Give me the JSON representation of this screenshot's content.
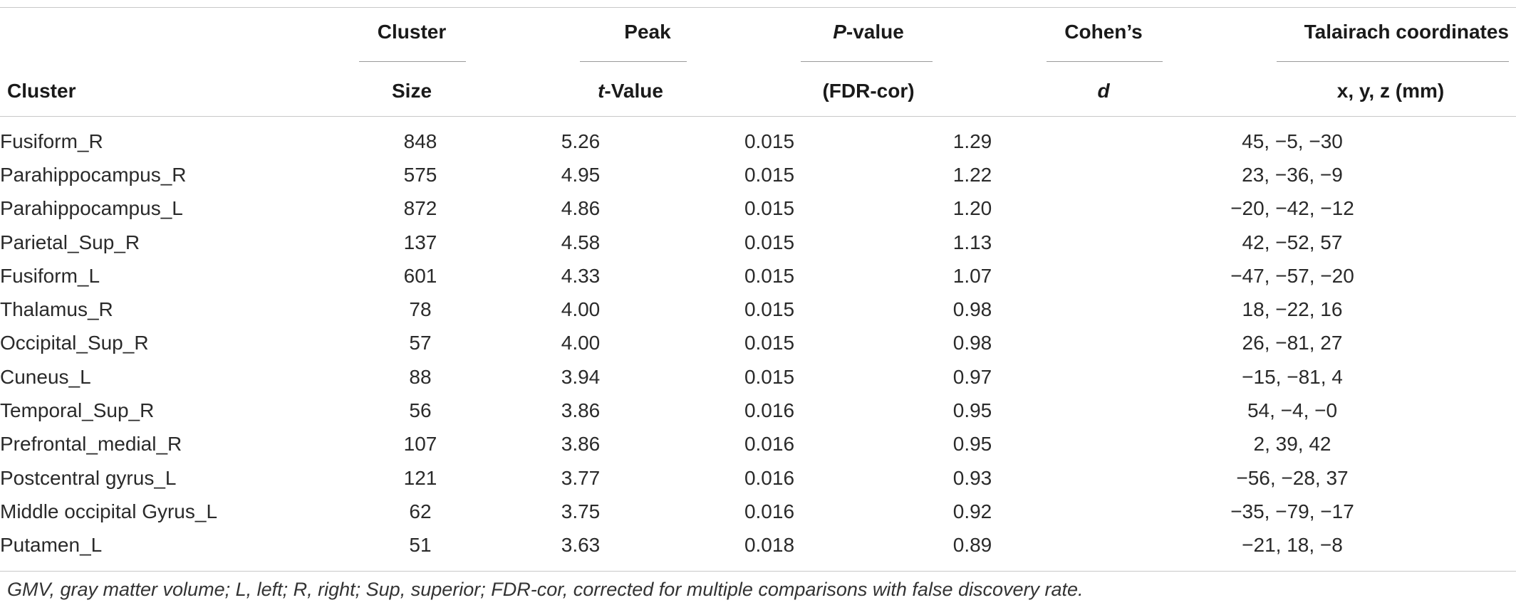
{
  "table": {
    "header": {
      "cluster_label": "Cluster",
      "size_top": "Cluster",
      "size_bottom": "Size",
      "t_top": "Peak",
      "t_bottom_italic": "t",
      "t_bottom_rest": "-Value",
      "p_top_italic": "P",
      "p_top_rest": "-value",
      "p_bottom": "(FDR-cor)",
      "d_top": "Cohen’s",
      "d_bottom": "d",
      "xyz_top": "Talairach coordinates",
      "xyz_bottom": "x, y, z (mm)"
    },
    "rows": [
      {
        "cluster": "Fusiform_R",
        "size": "848",
        "t": "5.26",
        "p": "0.015",
        "d": "1.29",
        "xyz": "45, −5, −30"
      },
      {
        "cluster": "Parahippocampus_R",
        "size": "575",
        "t": "4.95",
        "p": "0.015",
        "d": "1.22",
        "xyz": "23, −36, −9"
      },
      {
        "cluster": "Parahippocampus_L",
        "size": "872",
        "t": "4.86",
        "p": "0.015",
        "d": "1.20",
        "xyz": "−20, −42, −12"
      },
      {
        "cluster": "Parietal_Sup_R",
        "size": "137",
        "t": "4.58",
        "p": "0.015",
        "d": "1.13",
        "xyz": "42, −52, 57"
      },
      {
        "cluster": "Fusiform_L",
        "size": "601",
        "t": "4.33",
        "p": "0.015",
        "d": "1.07",
        "xyz": "−47, −57, −20"
      },
      {
        "cluster": "Thalamus_R",
        "size": "78",
        "t": "4.00",
        "p": "0.015",
        "d": "0.98",
        "xyz": "18, −22, 16"
      },
      {
        "cluster": "Occipital_Sup_R",
        "size": "57",
        "t": "4.00",
        "p": "0.015",
        "d": "0.98",
        "xyz": "26, −81, 27"
      },
      {
        "cluster": "Cuneus_L",
        "size": "88",
        "t": "3.94",
        "p": "0.015",
        "d": "0.97",
        "xyz": "−15, −81, 4"
      },
      {
        "cluster": "Temporal_Sup_R",
        "size": "56",
        "t": "3.86",
        "p": "0.016",
        "d": "0.95",
        "xyz": "54, −4, −0"
      },
      {
        "cluster": "Prefrontal_medial_R",
        "size": "107",
        "t": "3.86",
        "p": "0.016",
        "d": "0.95",
        "xyz": "2, 39, 42"
      },
      {
        "cluster": "Postcentral gyrus_L",
        "size": "121",
        "t": "3.77",
        "p": "0.016",
        "d": "0.93",
        "xyz": "−56, −28, 37"
      },
      {
        "cluster": "Middle occipital Gyrus_L",
        "size": "62",
        "t": "3.75",
        "p": "0.016",
        "d": "0.92",
        "xyz": "−35, −79, −17"
      },
      {
        "cluster": "Putamen_L",
        "size": "51",
        "t": "3.63",
        "p": "0.018",
        "d": "0.89",
        "xyz": "−21, 18, −8"
      }
    ]
  },
  "footnote": "GMV, gray matter volume; L, left; R, right; Sup, superior; FDR-cor, corrected for multiple comparisons with false discovery rate."
}
